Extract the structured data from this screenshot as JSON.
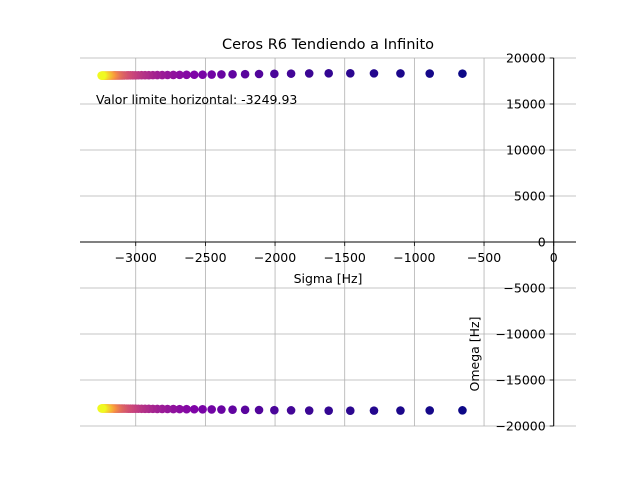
{
  "chart_data": {
    "type": "scatter",
    "title": "Ceros R6 Tendiendo a Infinito",
    "xlabel": "Sigma [Hz]",
    "ylabel": "Omega [Hz]",
    "annotation": "Valor limite horizontal: -3249.93",
    "xlim": [
      -3400,
      160
    ],
    "ylim": [
      -20000,
      20000
    ],
    "xticks": [
      -3000,
      -2500,
      -2000,
      -1500,
      -1000,
      -500,
      0
    ],
    "xtick_labels": [
      "−3000",
      "−2500",
      "−2000",
      "−1500",
      "−1000",
      "−500",
      "0"
    ],
    "yticks": [
      -20000,
      -15000,
      -10000,
      -5000,
      0,
      5000,
      10000,
      15000,
      20000
    ],
    "ytick_labels": [
      "−20000",
      "−15000",
      "−10000",
      "−5000",
      "0",
      "5000",
      "10000",
      "15000",
      "20000"
    ],
    "grid": true,
    "colormap": "plasma",
    "spines": "centered",
    "series": [
      {
        "x": [
          -655,
          -890,
          -1100,
          -1290,
          -1460,
          -1615,
          -1755,
          -1885,
          -2005,
          -2115,
          -2215,
          -2305,
          -2385,
          -2455,
          -2520,
          -2580,
          -2635,
          -2685,
          -2730,
          -2772,
          -2810,
          -2845,
          -2877,
          -2906,
          -2933,
          -2958,
          -2981,
          -3002,
          -3021,
          -3038,
          -3054,
          -3068,
          -3081,
          -3093,
          -3104,
          -3114,
          -3123,
          -3131,
          -3139,
          -3146,
          -3152,
          -3158,
          -3164,
          -3169,
          -3174,
          -3179,
          -3184,
          -3189,
          -3194,
          -3199,
          -3204,
          -3209,
          -3214,
          -3219,
          -3224,
          -3229,
          -3233,
          -3237,
          -3241,
          -3245
        ],
        "y": [
          18300,
          18310,
          18320,
          18330,
          18340,
          18335,
          18320,
          18300,
          18280,
          18260,
          18240,
          18225,
          18210,
          18200,
          18190,
          18180,
          18172,
          18165,
          18158,
          18152,
          18147,
          18142,
          18138,
          18134,
          18130,
          18127,
          18124,
          18121,
          18118,
          18116,
          18114,
          18112,
          18110,
          18108,
          18106,
          18105,
          18104,
          18103,
          18102,
          18101,
          18100,
          18100,
          18099,
          18099,
          18098,
          18098,
          18097,
          18097,
          18097,
          18096,
          18096,
          18096,
          18095,
          18095,
          18095,
          18095,
          18094,
          18094,
          18094,
          18094
        ]
      },
      {
        "x": [
          -655,
          -890,
          -1100,
          -1290,
          -1460,
          -1615,
          -1755,
          -1885,
          -2005,
          -2115,
          -2215,
          -2305,
          -2385,
          -2455,
          -2520,
          -2580,
          -2635,
          -2685,
          -2730,
          -2772,
          -2810,
          -2845,
          -2877,
          -2906,
          -2933,
          -2958,
          -2981,
          -3002,
          -3021,
          -3038,
          -3054,
          -3068,
          -3081,
          -3093,
          -3104,
          -3114,
          -3123,
          -3131,
          -3139,
          -3146,
          -3152,
          -3158,
          -3164,
          -3169,
          -3174,
          -3179,
          -3184,
          -3189,
          -3194,
          -3199,
          -3204,
          -3209,
          -3214,
          -3219,
          -3224,
          -3229,
          -3233,
          -3237,
          -3241,
          -3245
        ],
        "y": [
          -18300,
          -18310,
          -18320,
          -18330,
          -18340,
          -18335,
          -18320,
          -18300,
          -18280,
          -18260,
          -18240,
          -18225,
          -18210,
          -18200,
          -18190,
          -18180,
          -18172,
          -18165,
          -18158,
          -18152,
          -18147,
          -18142,
          -18138,
          -18134,
          -18130,
          -18127,
          -18124,
          -18121,
          -18118,
          -18116,
          -18114,
          -18112,
          -18110,
          -18108,
          -18106,
          -18105,
          -18104,
          -18103,
          -18102,
          -18101,
          -18100,
          -18100,
          -18099,
          -18099,
          -18098,
          -18098,
          -18097,
          -18097,
          -18097,
          -18096,
          -18096,
          -18096,
          -18095,
          -18095,
          -18095,
          -18095,
          -18094,
          -18094,
          -18094,
          -18094
        ]
      }
    ]
  }
}
